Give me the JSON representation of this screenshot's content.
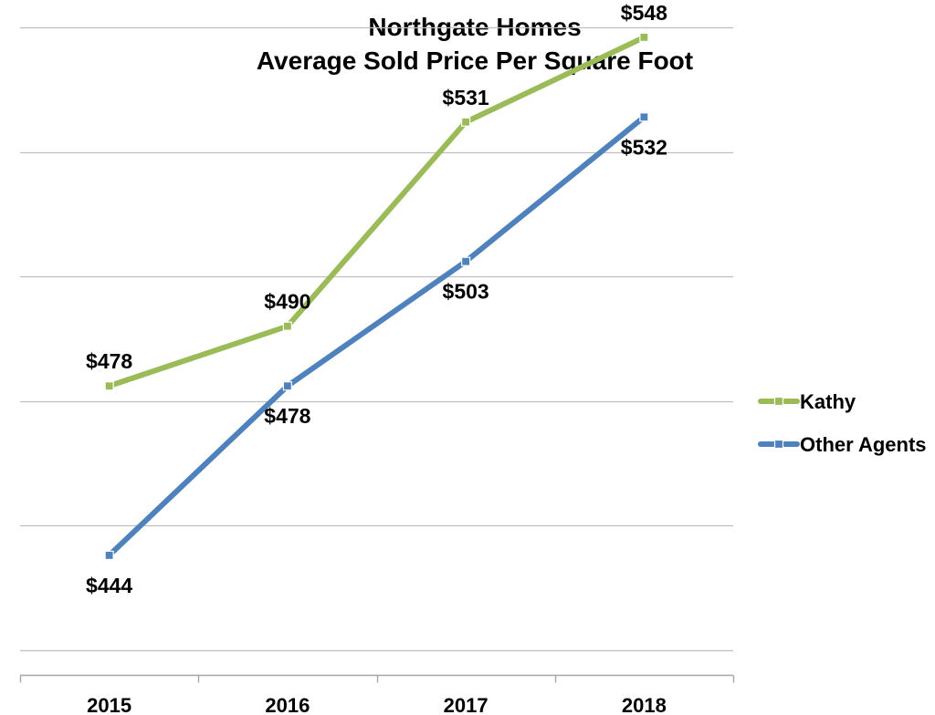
{
  "chart_data": {
    "type": "line",
    "title": [
      "Northgate Homes",
      "Average Sold Price Per Square Foot"
    ],
    "xlabel": "",
    "ylabel": "",
    "categories": [
      "2015",
      "2016",
      "2017",
      "2018"
    ],
    "series": [
      {
        "name": "Kathy",
        "color": "#9bbb59",
        "values": [
          478,
          490,
          531,
          548
        ],
        "labels": [
          "$478",
          "$490",
          "$531",
          "$548"
        ],
        "label_placement": "above"
      },
      {
        "name": "Other Agents",
        "color": "#4f81bd",
        "values": [
          444,
          478,
          503,
          532
        ],
        "labels": [
          "$444",
          "$478",
          "$503",
          "$532"
        ],
        "label_placement": "below"
      }
    ],
    "ylim": [
      420,
      550
    ],
    "ytick_values": [
      425,
      450,
      475,
      500,
      525,
      550
    ],
    "y_tick_labels_shown": false,
    "grid": true,
    "legend": "right"
  }
}
